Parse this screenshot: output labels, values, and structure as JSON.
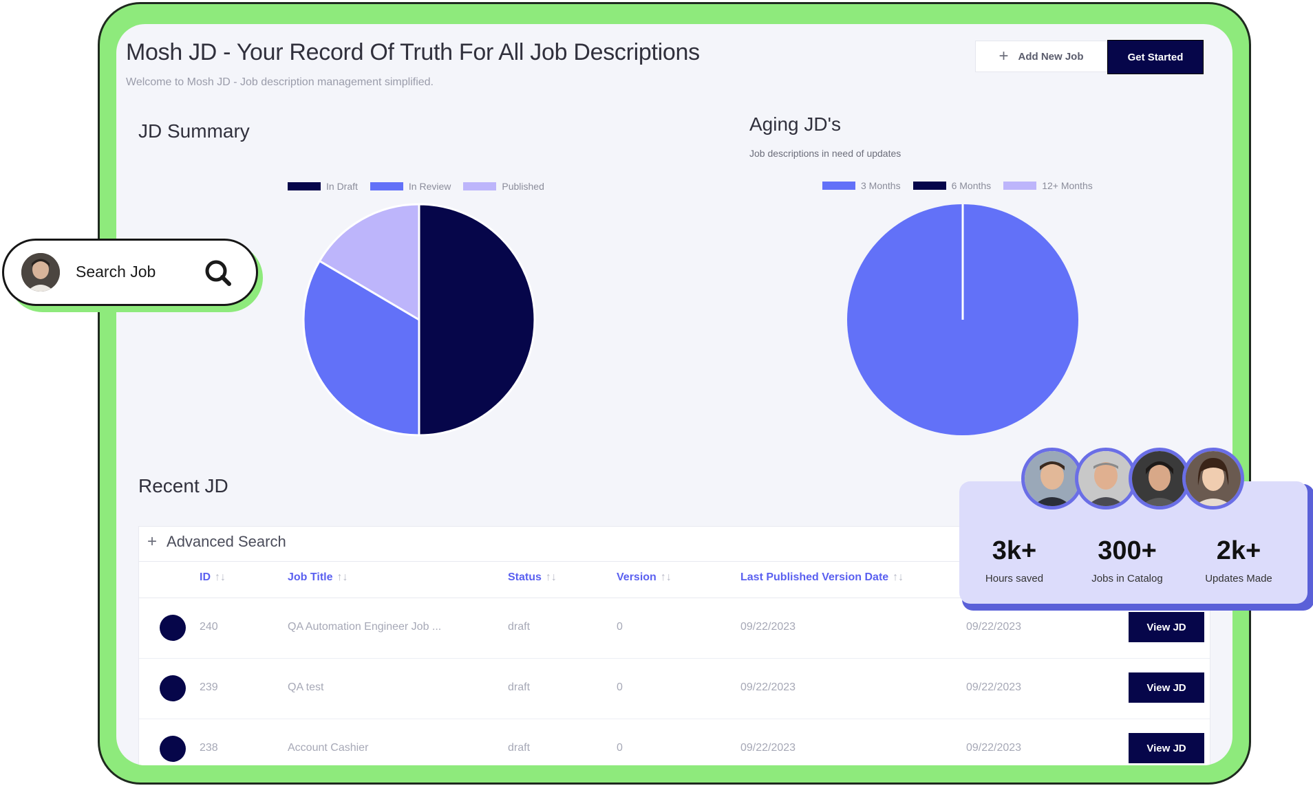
{
  "header": {
    "title": "Mosh JD - Your Record Of Truth For All Job Descriptions",
    "subtitle": "Welcome to Mosh JD - Job description management simplified.",
    "add_job_label": "Add New Job",
    "get_started_label": "Get Started"
  },
  "jd_summary": {
    "title": "JD Summary",
    "legend": [
      {
        "label": "In Draft",
        "color": "#06064a"
      },
      {
        "label": "In Review",
        "color": "#6271f8"
      },
      {
        "label": "Published",
        "color": "#bdb5fb"
      }
    ],
    "chart_data": {
      "type": "pie",
      "labels": [
        "In Draft",
        "In Review",
        "Published"
      ],
      "values": [
        50,
        33.5,
        16.5
      ],
      "colors": [
        "#06064a",
        "#6271f8",
        "#bdb5fb"
      ]
    }
  },
  "aging": {
    "title": "Aging JD's",
    "subtitle": "Job descriptions in need of updates",
    "legend": [
      {
        "label": "3 Months",
        "color": "#6271f8"
      },
      {
        "label": "6 Months",
        "color": "#06064a"
      },
      {
        "label": "12+ Months",
        "color": "#bdb5fb"
      }
    ],
    "chart_data": {
      "type": "pie",
      "labels": [
        "3 Months",
        "6 Months",
        "12+ Months"
      ],
      "values": [
        100,
        0,
        0
      ],
      "colors": [
        "#6271f8",
        "#06064a",
        "#bdb5fb"
      ]
    }
  },
  "recent": {
    "title": "Recent JD",
    "advanced_search": "Advanced Search",
    "sort_glyph": "↑↓",
    "columns": [
      "ID",
      "Job Title",
      "Status",
      "Version",
      "Last Published Version Date"
    ],
    "view_label": "View JD",
    "rows": [
      {
        "id": "240",
        "title": "QA Automation Engineer Job ...",
        "status": "draft",
        "version": "0",
        "published": "09/22/2023",
        "updated": "09/22/2023"
      },
      {
        "id": "239",
        "title": "QA test",
        "status": "draft",
        "version": "0",
        "published": "09/22/2023",
        "updated": "09/22/2023"
      },
      {
        "id": "238",
        "title": "Account Cashier",
        "status": "draft",
        "version": "0",
        "published": "09/22/2023",
        "updated": "09/22/2023"
      }
    ]
  },
  "search_widget": {
    "label": "Search Job"
  },
  "stats": [
    {
      "value": "3k+",
      "label": "Hours saved"
    },
    {
      "value": "300+",
      "label": "Jobs in Catalog"
    },
    {
      "value": "2k+",
      "label": "Updates Made"
    }
  ],
  "colors": {
    "frame_green": "#8eea7c",
    "navy": "#06064a",
    "accent_blue": "#6271f8",
    "lavender": "#bdb5fb"
  }
}
